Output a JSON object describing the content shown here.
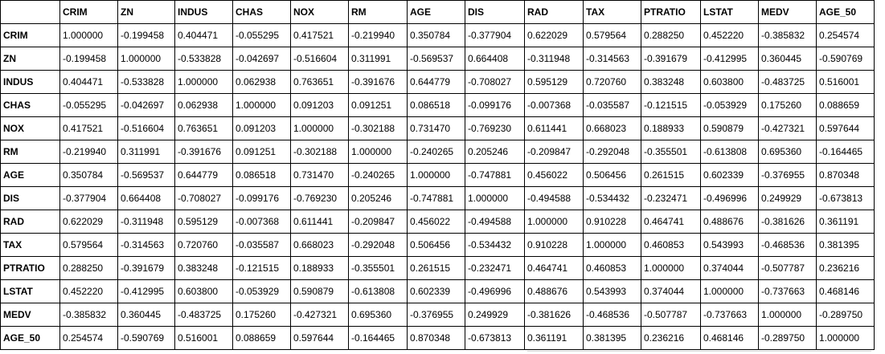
{
  "columns": [
    "CRIM",
    "ZN",
    "INDUS",
    "CHAS",
    "NOX",
    "RM",
    "AGE",
    "DIS",
    "RAD",
    "TAX",
    "PTRATIO",
    "LSTAT",
    "MEDV",
    "AGE_50"
  ],
  "rows": [
    {
      "label": "CRIM",
      "values": [
        "1.000000",
        "-0.199458",
        "0.404471",
        "-0.055295",
        "0.417521",
        "-0.219940",
        "0.350784",
        "-0.377904",
        "0.622029",
        "0.579564",
        "0.288250",
        "0.452220",
        "-0.385832",
        "0.254574"
      ]
    },
    {
      "label": "ZN",
      "values": [
        "-0.199458",
        "1.000000",
        "-0.533828",
        "-0.042697",
        "-0.516604",
        "0.311991",
        "-0.569537",
        "0.664408",
        "-0.311948",
        "-0.314563",
        "-0.391679",
        "-0.412995",
        "0.360445",
        "-0.590769"
      ]
    },
    {
      "label": "INDUS",
      "values": [
        "0.404471",
        "-0.533828",
        "1.000000",
        "0.062938",
        "0.763651",
        "-0.391676",
        "0.644779",
        "-0.708027",
        "0.595129",
        "0.720760",
        "0.383248",
        "0.603800",
        "-0.483725",
        "0.516001"
      ]
    },
    {
      "label": "CHAS",
      "values": [
        "-0.055295",
        "-0.042697",
        "0.062938",
        "1.000000",
        "0.091203",
        "0.091251",
        "0.086518",
        "-0.099176",
        "-0.007368",
        "-0.035587",
        "-0.121515",
        "-0.053929",
        "0.175260",
        "0.088659"
      ]
    },
    {
      "label": "NOX",
      "values": [
        "0.417521",
        "-0.516604",
        "0.763651",
        "0.091203",
        "1.000000",
        "-0.302188",
        "0.731470",
        "-0.769230",
        "0.611441",
        "0.668023",
        "0.188933",
        "0.590879",
        "-0.427321",
        "0.597644"
      ]
    },
    {
      "label": "RM",
      "values": [
        "-0.219940",
        "0.311991",
        "-0.391676",
        "0.091251",
        "-0.302188",
        "1.000000",
        "-0.240265",
        "0.205246",
        "-0.209847",
        "-0.292048",
        "-0.355501",
        "-0.613808",
        "0.695360",
        "-0.164465"
      ]
    },
    {
      "label": "AGE",
      "values": [
        "0.350784",
        "-0.569537",
        "0.644779",
        "0.086518",
        "0.731470",
        "-0.240265",
        "1.000000",
        "-0.747881",
        "0.456022",
        "0.506456",
        "0.261515",
        "0.602339",
        "-0.376955",
        "0.870348"
      ]
    },
    {
      "label": "DIS",
      "values": [
        "-0.377904",
        "0.664408",
        "-0.708027",
        "-0.099176",
        "-0.769230",
        "0.205246",
        "-0.747881",
        "1.000000",
        "-0.494588",
        "-0.534432",
        "-0.232471",
        "-0.496996",
        "0.249929",
        "-0.673813"
      ]
    },
    {
      "label": "RAD",
      "values": [
        "0.622029",
        "-0.311948",
        "0.595129",
        "-0.007368",
        "0.611441",
        "-0.209847",
        "0.456022",
        "-0.494588",
        "1.000000",
        "0.910228",
        "0.464741",
        "0.488676",
        "-0.381626",
        "0.361191"
      ]
    },
    {
      "label": "TAX",
      "values": [
        "0.579564",
        "-0.314563",
        "0.720760",
        "-0.035587",
        "0.668023",
        "-0.292048",
        "0.506456",
        "-0.534432",
        "0.910228",
        "1.000000",
        "0.460853",
        "0.543993",
        "-0.468536",
        "0.381395"
      ]
    },
    {
      "label": "PTRATIO",
      "values": [
        "0.288250",
        "-0.391679",
        "0.383248",
        "-0.121515",
        "0.188933",
        "-0.355501",
        "0.261515",
        "-0.232471",
        "0.464741",
        "0.460853",
        "1.000000",
        "0.374044",
        "-0.507787",
        "0.236216"
      ]
    },
    {
      "label": "LSTAT",
      "values": [
        "0.452220",
        "-0.412995",
        "0.603800",
        "-0.053929",
        "0.590879",
        "-0.613808",
        "0.602339",
        "-0.496996",
        "0.488676",
        "0.543993",
        "0.374044",
        "1.000000",
        "-0.737663",
        "0.468146"
      ]
    },
    {
      "label": "MEDV",
      "values": [
        "-0.385832",
        "0.360445",
        "-0.483725",
        "0.175260",
        "-0.427321",
        "0.695360",
        "-0.376955",
        "0.249929",
        "-0.381626",
        "-0.468536",
        "-0.507787",
        "-0.737663",
        "1.000000",
        "-0.289750"
      ]
    },
    {
      "label": "AGE_50",
      "values": [
        "0.254574",
        "-0.590769",
        "0.516001",
        "0.088659",
        "0.597644",
        "-0.164465",
        "0.870348",
        "-0.673813",
        "0.361191",
        "0.381395",
        "0.236216",
        "0.468146",
        "-0.289750",
        "1.000000"
      ]
    }
  ]
}
